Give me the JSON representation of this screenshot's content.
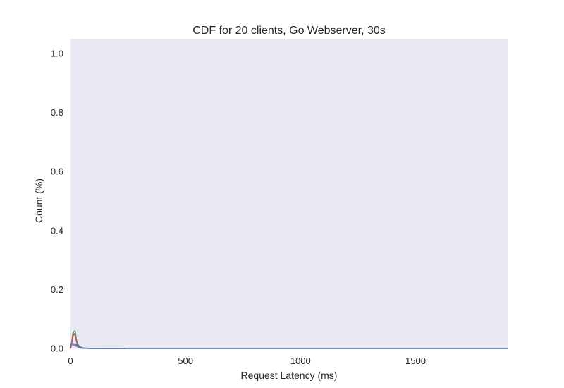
{
  "chart_data": {
    "type": "line",
    "title": "CDF for 20 clients, Go Webserver, 30s",
    "xlabel": "Request Latency (ms)",
    "ylabel": "Count (%)",
    "xlim": [
      0,
      1900
    ],
    "ylim": [
      0,
      1.05
    ],
    "xticks": [
      0,
      500,
      1000,
      1500
    ],
    "xtick_labels": [
      "0",
      "500",
      "1000",
      "1500"
    ],
    "yticks": [
      0.0,
      0.2,
      0.4,
      0.6,
      0.8,
      1.0
    ],
    "ytick_labels": [
      "0.0",
      "0.2",
      "0.4",
      "0.6",
      "0.8",
      "1.0"
    ],
    "grid": false,
    "background": "#e8e9f2",
    "series": [
      {
        "color": "#55a868",
        "x": [
          0,
          5,
          10,
          15,
          20,
          25,
          30,
          40,
          50,
          60,
          80,
          120,
          160,
          200,
          240
        ],
        "y": [
          0.0,
          0.02,
          0.05,
          0.058,
          0.06,
          0.035,
          0.015,
          0.007,
          0.003,
          0.001,
          0.0,
          0.0,
          0.0,
          0.0,
          0.0
        ]
      },
      {
        "color": "#c44e52",
        "x": [
          0,
          5,
          10,
          15,
          20,
          25,
          30,
          40,
          50,
          60,
          80,
          120,
          160,
          200,
          240
        ],
        "y": [
          0.0,
          0.015,
          0.04,
          0.05,
          0.045,
          0.028,
          0.012,
          0.005,
          0.002,
          0.001,
          0.0005,
          0.0003,
          0.0002,
          0.0001,
          0.0
        ]
      },
      {
        "color": "#4c72b0",
        "x": [
          0,
          10,
          20,
          30,
          40,
          50,
          60,
          80,
          100,
          200,
          500,
          1000,
          1500,
          1900
        ],
        "y": [
          0.015,
          0.016,
          0.015,
          0.01,
          0.005,
          0.002,
          0.001,
          0.0003,
          0.0001,
          0.0,
          0.0,
          0.0,
          0.0,
          0.0
        ]
      },
      {
        "color": "#8172b2",
        "x": [
          0,
          10,
          20,
          30,
          40,
          60
        ],
        "y": [
          0.012,
          0.013,
          0.01,
          0.006,
          0.002,
          0.0
        ]
      }
    ]
  }
}
